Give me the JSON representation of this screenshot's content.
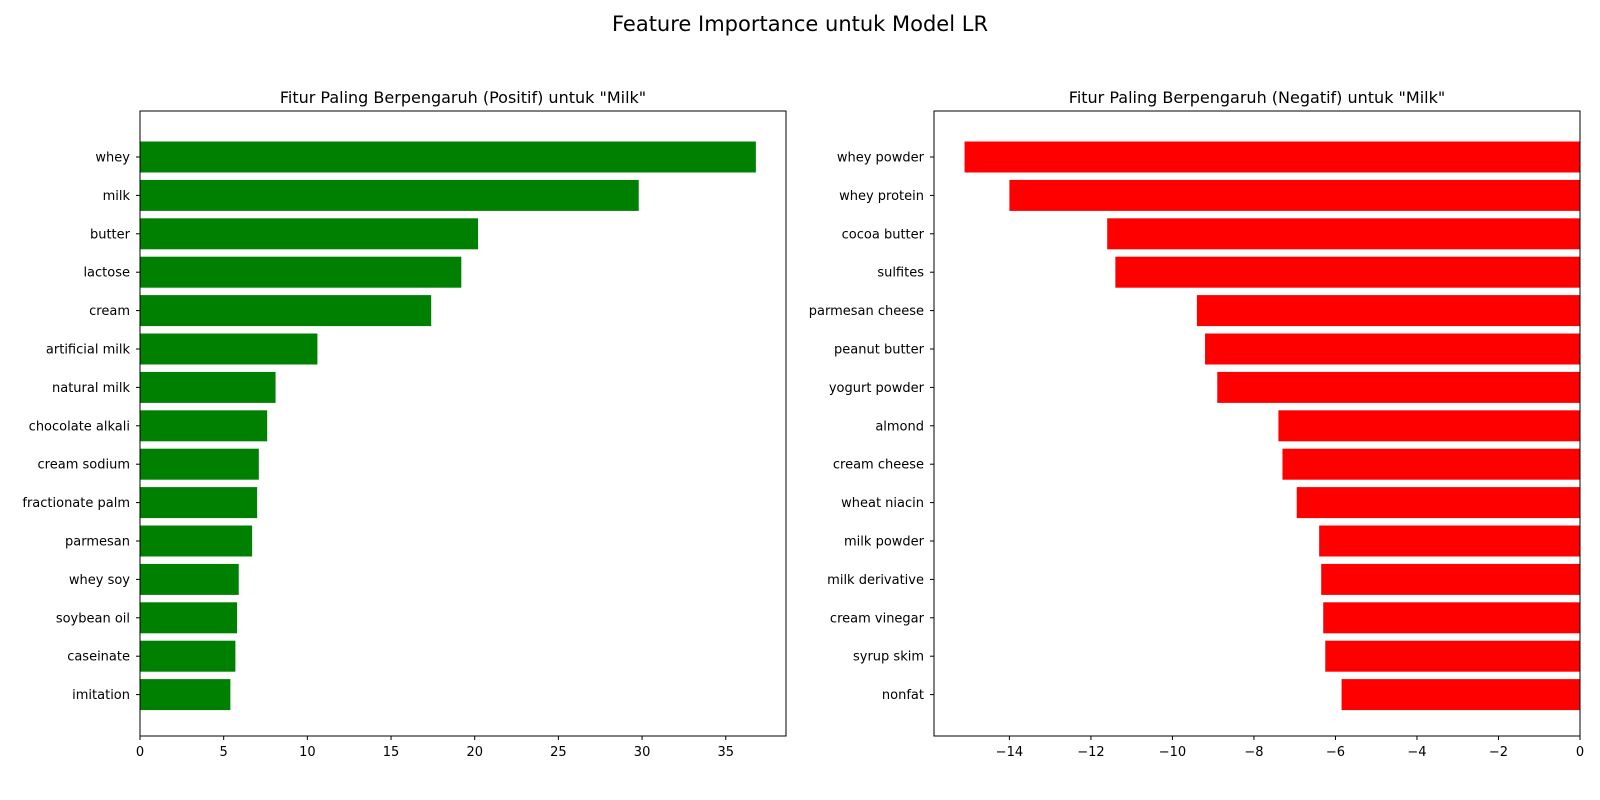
{
  "figure": {
    "suptitle": "Feature Importance untuk Model LR"
  },
  "chart_data": [
    {
      "type": "bar",
      "orientation": "horizontal",
      "title": "Fitur Paling Berpengaruh (Positif) untuk \"Milk\"",
      "xlabel": "",
      "ylabel": "",
      "categories": [
        "whey",
        "milk",
        "butter",
        "lactose",
        "cream",
        "artificial milk",
        "natural milk",
        "chocolate alkali",
        "cream sodium",
        "fractionate palm",
        "parmesan",
        "whey soy",
        "soybean oil",
        "caseinate",
        "imitation"
      ],
      "values": [
        36.8,
        29.8,
        20.2,
        19.2,
        17.4,
        10.6,
        8.1,
        7.6,
        7.1,
        7.0,
        6.7,
        5.9,
        5.8,
        5.7,
        5.4
      ],
      "xlim": [
        0,
        38.6
      ],
      "xticks": [
        0,
        5,
        10,
        15,
        20,
        25,
        30,
        35
      ],
      "xtick_labels": [
        "0",
        "5",
        "10",
        "15",
        "20",
        "25",
        "30",
        "35"
      ],
      "color": "#008000",
      "grid": false,
      "legend": "none"
    },
    {
      "type": "bar",
      "orientation": "horizontal",
      "title": "Fitur Paling Berpengaruh (Negatif) untuk \"Milk\"",
      "xlabel": "",
      "ylabel": "",
      "categories": [
        "whey powder",
        "whey protein",
        "cocoa butter",
        "sulfites",
        "parmesan cheese",
        "peanut butter",
        "yogurt powder",
        "almond",
        "cream cheese",
        "wheat niacin",
        "milk powder",
        "milk derivative",
        "cream vinegar",
        "syrup skim",
        "nonfat"
      ],
      "values": [
        -15.1,
        -14.0,
        -11.6,
        -11.4,
        -9.4,
        -9.2,
        -8.9,
        -7.4,
        -7.3,
        -6.95,
        -6.4,
        -6.35,
        -6.3,
        -6.25,
        -5.85
      ],
      "xlim": [
        -15.85,
        0
      ],
      "xticks": [
        -14,
        -12,
        -10,
        -8,
        -6,
        -4,
        -2,
        0
      ],
      "xtick_labels": [
        "−14",
        "−12",
        "−10",
        "−8",
        "−6",
        "−4",
        "−2",
        "0"
      ],
      "color": "#ff0000",
      "grid": false,
      "legend": "none"
    }
  ]
}
